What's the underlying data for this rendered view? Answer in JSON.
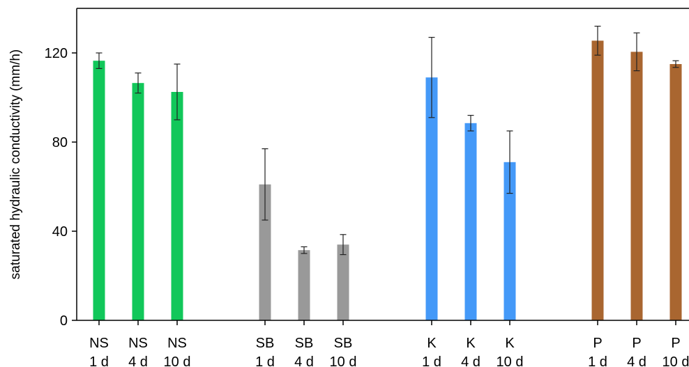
{
  "chart_data": {
    "type": "bar",
    "title": "",
    "xlabel": "",
    "ylabel": "saturated hydraulic conductivity (mm/h)",
    "ylim": [
      0,
      140
    ],
    "yticks": [
      0,
      40,
      80,
      120
    ],
    "grid": false,
    "legend": "none",
    "categories": [
      {
        "line1": "NS",
        "line2": "1 d",
        "group": "NS"
      },
      {
        "line1": "NS",
        "line2": "4 d",
        "group": "NS"
      },
      {
        "line1": "NS",
        "line2": "10 d",
        "group": "NS"
      },
      {
        "line1": "SB",
        "line2": "1 d",
        "group": "SB"
      },
      {
        "line1": "SB",
        "line2": "4 d",
        "group": "SB"
      },
      {
        "line1": "SB",
        "line2": "10 d",
        "group": "SB"
      },
      {
        "line1": "K",
        "line2": "1 d",
        "group": "K"
      },
      {
        "line1": "K",
        "line2": "4 d",
        "group": "K"
      },
      {
        "line1": "K",
        "line2": "10 d",
        "group": "K"
      },
      {
        "line1": "P",
        "line2": "1 d",
        "group": "P"
      },
      {
        "line1": "P",
        "line2": "4 d",
        "group": "P"
      },
      {
        "line1": "P",
        "line2": "10 d",
        "group": "P"
      }
    ],
    "values": [
      116.5,
      106.5,
      102.5,
      61,
      31.5,
      34,
      109,
      88.5,
      71,
      125.5,
      120.5,
      115
    ],
    "error_low": [
      113,
      102,
      90,
      45,
      30,
      29.5,
      91,
      85,
      57,
      119,
      112,
      113.5
    ],
    "error_high": [
      120,
      111,
      115,
      77,
      33,
      38.5,
      127,
      92,
      85,
      132,
      129,
      116.5
    ],
    "group_colors": {
      "NS": "#11c75a",
      "SB": "#999999",
      "K": "#4499f8",
      "P": "#a96630"
    }
  }
}
